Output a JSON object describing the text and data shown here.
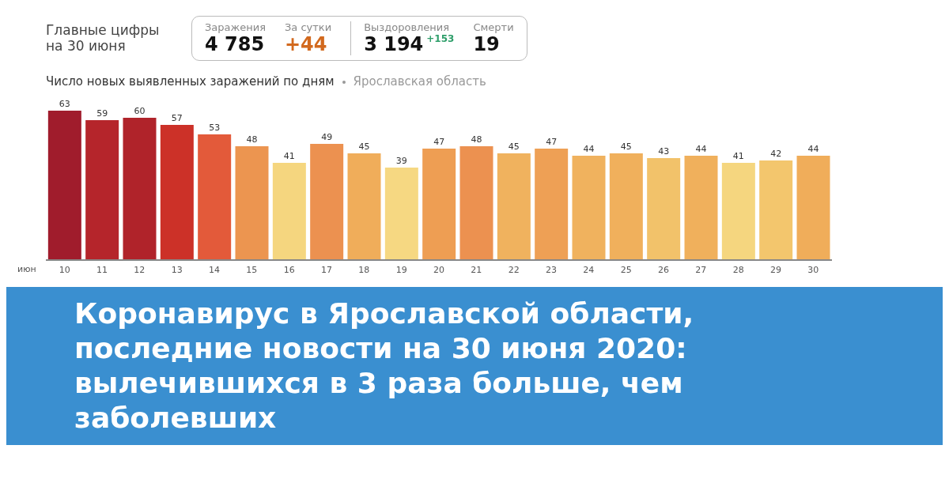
{
  "chart_data": [
    {
      "type": "other",
      "title": "Главные цифры на 30 июня",
      "annotations": [
        "Заражения",
        "4 785",
        "За сутки",
        "+44",
        "Выздоровления",
        "3 194",
        "+153",
        "Смерти",
        "19"
      ]
    },
    {
      "type": "bar",
      "title": "Число новых выявленных заражений по дням",
      "subtitle": "Ярославская область",
      "xlabel": "июн",
      "categories": [
        "10",
        "11",
        "12",
        "13",
        "14",
        "15",
        "16",
        "17",
        "18",
        "19",
        "20",
        "21",
        "22",
        "23",
        "24",
        "25",
        "26",
        "27",
        "28",
        "29",
        "30"
      ],
      "values": [
        63,
        59,
        60,
        57,
        53,
        48,
        41,
        49,
        45,
        39,
        47,
        48,
        45,
        47,
        44,
        45,
        43,
        44,
        41,
        42,
        44
      ],
      "colors": [
        "#a01c2c",
        "#b5252b",
        "#b0232a",
        "#cc3128",
        "#e35a3a",
        "#ec9550",
        "#f5d67f",
        "#ec9150",
        "#f0ad5a",
        "#f6d882",
        "#ee9e53",
        "#ec9150",
        "#f0b25e",
        "#eea055",
        "#f0b25e",
        "#f0b05c",
        "#f2c26a",
        "#f0b05c",
        "#f5d67f",
        "#f3c66d",
        "#f0ad5a"
      ],
      "data_labels": true,
      "grid": false,
      "legend": false,
      "annotations": [
        "Коронавирус в Ярославской области, последние новости на 30 июня 2020: вылечившихся в 3 раза больше, чем заболевших"
      ]
    }
  ]
}
